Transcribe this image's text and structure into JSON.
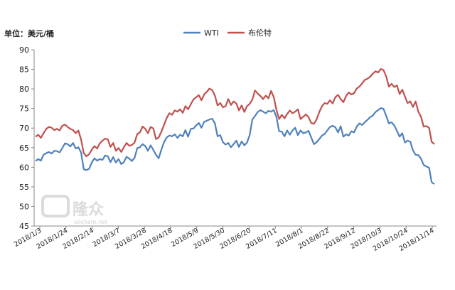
{
  "chart_data": {
    "type": "line",
    "unit_label": "单位：美元/桶",
    "yticks": [
      45,
      50,
      55,
      60,
      65,
      70,
      75,
      80,
      85,
      90
    ],
    "ylim": [
      45,
      90
    ],
    "grid": false,
    "legend_position": "top-center",
    "watermark": {
      "brand": "隆众",
      "url": "oilchem.net"
    },
    "xtick_labels": [
      "2018/1/3",
      "2018/1/24",
      "2018/2/14",
      "2018/3/7",
      "2018/3/28",
      "2018/4/18",
      "2018/5/9",
      "2018/5/30",
      "2018/6/20",
      "2018/7/11",
      "2018/8/1",
      "2018/8/22",
      "2018/9/12",
      "2018/10/3",
      "2018/10/24",
      "2018/11/14"
    ],
    "series": [
      {
        "name": "WTI",
        "color": "#4F81BD",
        "values": [
          61.6,
          62.1,
          61.7,
          63.2,
          63.6,
          63.9,
          63.5,
          64.2,
          64.1,
          63.8,
          64.9,
          66.1,
          65.9,
          65.3,
          66.2,
          64.8,
          65.1,
          63.8,
          59.5,
          59.3,
          59.6,
          61.2,
          62.3,
          61.7,
          62.1,
          61.9,
          63.0,
          62.8,
          61.3,
          62.6,
          61.2,
          62.1,
          60.8,
          61.3,
          62.7,
          62.2,
          61.6,
          62.4,
          64.9,
          65.1,
          65.9,
          65.4,
          64.2,
          65.6,
          64.4,
          63.2,
          62.3,
          64.5,
          66.4,
          67.6,
          68.1,
          67.9,
          68.4,
          67.5,
          68.3,
          67.9,
          69.5,
          67.8,
          69.8,
          69.9,
          70.7,
          71.3,
          70.1,
          71.6,
          71.9,
          72.2,
          72.4,
          71.2,
          67.9,
          68.2,
          66.4,
          65.8,
          66.2,
          65.1,
          65.9,
          66.8,
          65.2,
          66.6,
          65.6,
          66.3,
          68.2,
          72.2,
          73.1,
          74.1,
          74.6,
          74.2,
          73.8,
          74.4,
          74.2,
          74.6,
          72.8,
          69.2,
          69.1,
          67.9,
          69.4,
          68.3,
          69.4,
          70.1,
          68.2,
          69.4,
          68.7,
          68.9,
          69.3,
          67.6,
          65.9,
          66.4,
          67.2,
          68.1,
          68.5,
          69.4,
          70.3,
          70.6,
          70.2,
          68.9,
          70.5,
          67.8,
          68.4,
          68.1,
          69.2,
          68.9,
          70.4,
          71.2,
          70.8,
          71.5,
          72.1,
          72.8,
          73.2,
          74.1,
          74.6,
          75.1,
          74.9,
          73.1,
          71.2,
          71.5,
          70.7,
          69.3,
          67.8,
          68.7,
          66.3,
          66.8,
          66.5,
          64.3,
          63.2,
          63.1,
          62.2,
          60.6,
          60.2,
          59.9,
          56.2,
          55.7
        ]
      },
      {
        "name": "布伦特",
        "color": "#C0504D",
        "values": [
          67.8,
          68.3,
          67.5,
          68.7,
          69.8,
          70.3,
          70.1,
          69.5,
          69.8,
          69.4,
          70.6,
          70.9,
          70.3,
          69.8,
          69.5,
          68.7,
          69.4,
          67.1,
          63.6,
          62.8,
          63.3,
          64.5,
          65.4,
          64.8,
          66.1,
          66.8,
          67.3,
          67.1,
          65.2,
          66.2,
          64.2,
          64.9,
          63.9,
          65.1,
          66.2,
          65.5,
          65.7,
          66.3,
          68.5,
          68.9,
          70.4,
          69.8,
          68.7,
          70.3,
          69.9,
          67.2,
          67.6,
          69.1,
          70.8,
          72.6,
          73.8,
          73.4,
          74.5,
          74.2,
          74.8,
          73.9,
          75.6,
          74.8,
          76.1,
          77.3,
          77.9,
          78.4,
          77.1,
          78.6,
          79.3,
          80.1,
          79.7,
          78.3,
          75.8,
          76.4,
          75.3,
          75.6,
          77.4,
          75.9,
          76.8,
          76.3,
          74.5,
          75.8,
          74.1,
          75.6,
          76.2,
          77.3,
          79.6,
          78.8,
          78.2,
          77.4,
          78.3,
          77.6,
          79.5,
          77.9,
          74.6,
          72.3,
          73.4,
          72.5,
          73.6,
          74.5,
          73.8,
          74.2,
          74.8,
          72.3,
          72.9,
          73.5,
          72.8,
          71.3,
          71.1,
          72.2,
          74.1,
          75.6,
          76.4,
          76.2,
          77.1,
          76.3,
          77.9,
          78.5,
          77.4,
          76.6,
          78.2,
          79.1,
          78.6,
          78.9,
          80.1,
          80.6,
          81.4,
          82.3,
          82.6,
          83.1,
          83.9,
          84.5,
          84.2,
          85.1,
          84.8,
          83.2,
          80.6,
          81.3,
          80.5,
          80.9,
          78.7,
          79.8,
          78.1,
          76.4,
          76.8,
          75.4,
          76.8,
          74.2,
          72.9,
          70.4,
          70.5,
          70.1,
          66.5,
          65.9
        ]
      }
    ]
  }
}
